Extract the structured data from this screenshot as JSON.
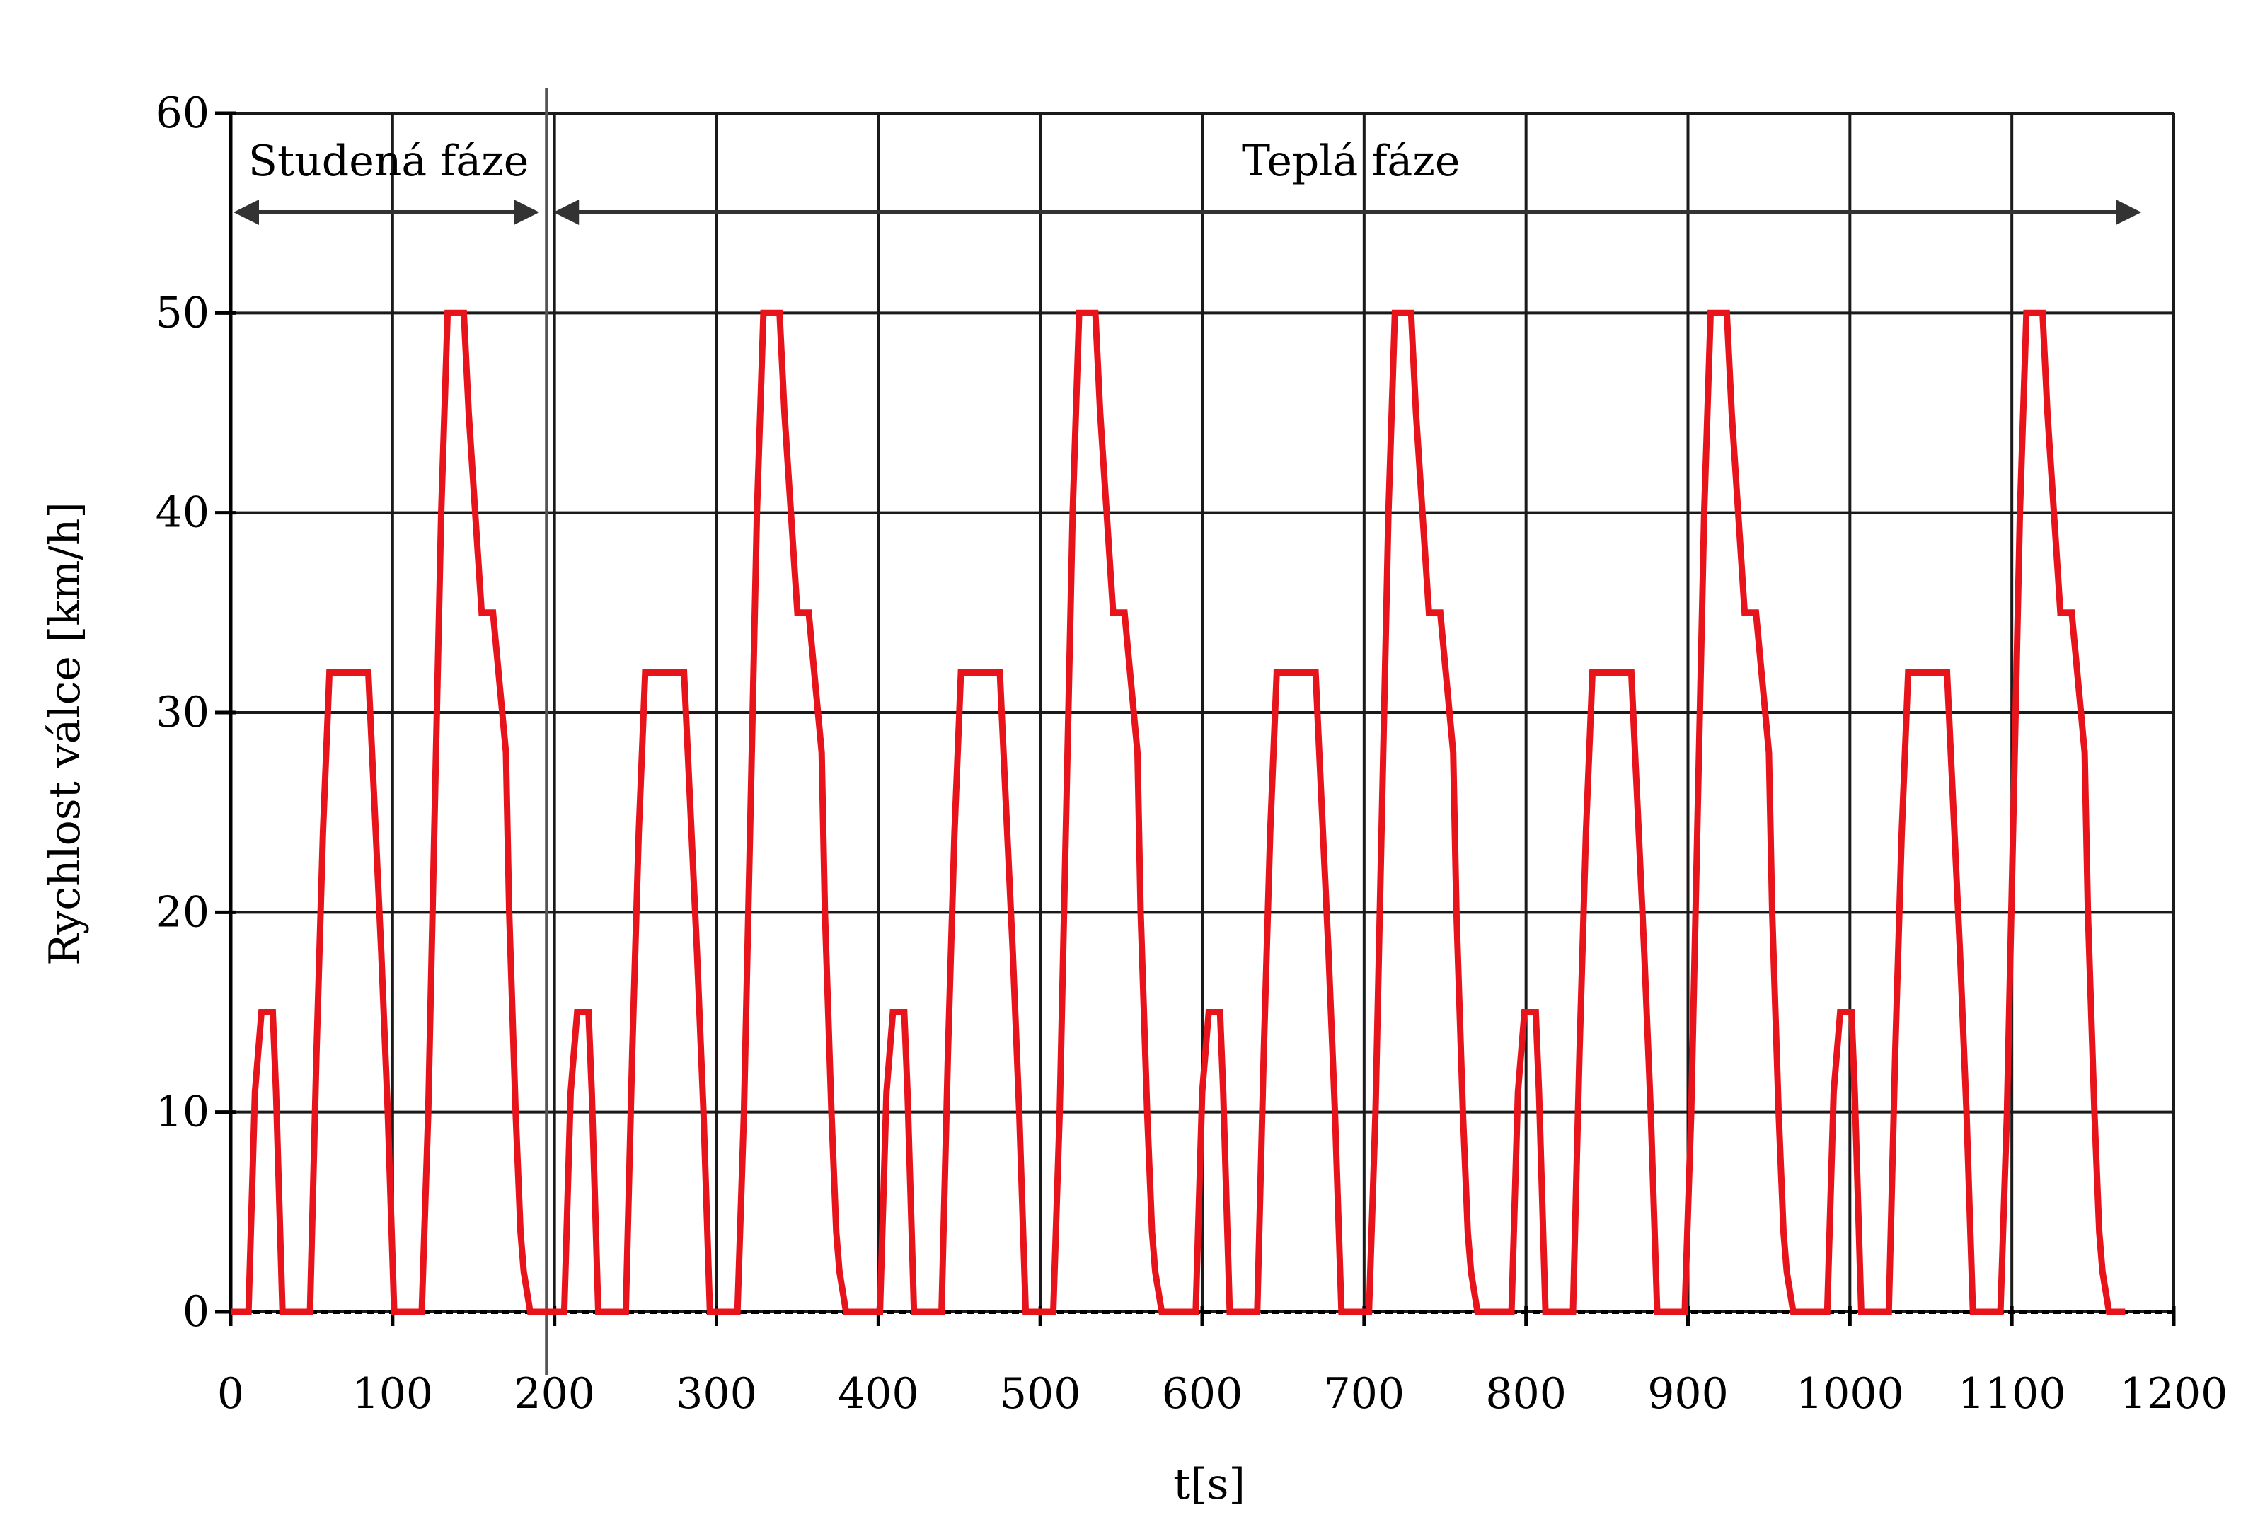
{
  "chart_data": {
    "type": "line",
    "title": "",
    "xlabel": "t[s]",
    "ylabel": "Rychlost válce [km/h]",
    "xlim": [
      0,
      1200
    ],
    "ylim": [
      0,
      60
    ],
    "x_ticks": [
      "0",
      "100",
      "200",
      "300",
      "400",
      "500",
      "600",
      "700",
      "800",
      "900",
      "1000",
      "1100",
      "1200"
    ],
    "y_ticks": [
      "0",
      "10",
      "20",
      "30",
      "40",
      "50",
      "60"
    ],
    "grid": true,
    "line_color": "#e8141c",
    "phases": [
      {
        "label": "Studená fáze",
        "start": 0,
        "end": 195
      },
      {
        "label": "Teplá fáze",
        "start": 195,
        "end": 1180
      }
    ],
    "cycle_period": 195,
    "cycle_starts": [
      0,
      195,
      390,
      585,
      780,
      975
    ],
    "series": [
      {
        "name": "",
        "cycle_profile_x": [
          0,
          11,
          15,
          19,
          26,
          28,
          32,
          49,
          53,
          57,
          61,
          65,
          85,
          89,
          93,
          97,
          101,
          118,
          122,
          126,
          130,
          134,
          138,
          144,
          147,
          155,
          158,
          162,
          170,
          172,
          176,
          179,
          181,
          185,
          195
        ],
        "cycle_profile_y": [
          0,
          0,
          11,
          15,
          15,
          11,
          0,
          0,
          13,
          24,
          32,
          32,
          32,
          25,
          18,
          10,
          0,
          0,
          10,
          25,
          40,
          50,
          50,
          50,
          45,
          35,
          35,
          35,
          28,
          20,
          10,
          4,
          2,
          0,
          0
        ]
      }
    ]
  }
}
